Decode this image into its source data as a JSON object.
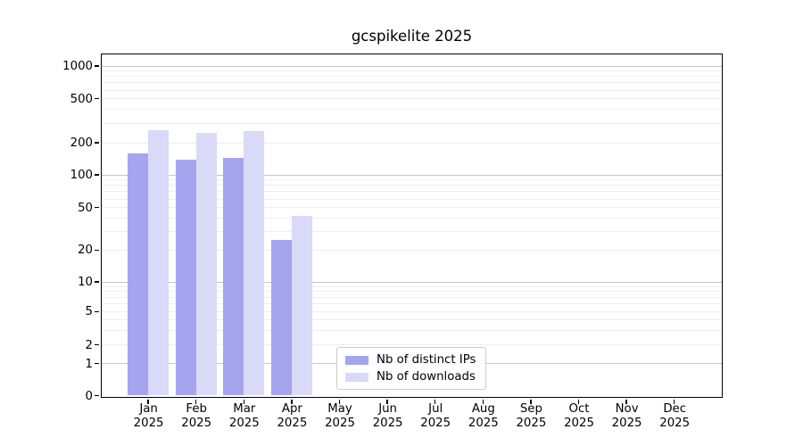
{
  "title": "gcspikelite 2025",
  "chart_data": {
    "type": "bar",
    "title": "gcspikelite 2025",
    "categories": [
      "Jan\n2025",
      "Feb\n2025",
      "Mar\n2025",
      "Apr\n2025",
      "May\n2025",
      "Jun\n2025",
      "Jul\n2025",
      "Aug\n2025",
      "Sep\n2025",
      "Oct\n2025",
      "Nov\n2025",
      "Dec\n2025"
    ],
    "series": [
      {
        "name": "Nb of distinct IPs",
        "color": "#a5a5ef",
        "values": [
          160,
          140,
          145,
          25,
          null,
          null,
          null,
          null,
          null,
          null,
          null,
          null
        ]
      },
      {
        "name": "Nb of downloads",
        "color": "#d9d9f8",
        "values": [
          260,
          245,
          255,
          42,
          null,
          null,
          null,
          null,
          null,
          null,
          null,
          null
        ]
      }
    ],
    "xlabel": "",
    "ylabel": "",
    "yscale": "symlog",
    "yticks": [
      0,
      1,
      2,
      5,
      10,
      20,
      50,
      100,
      200,
      500,
      1000
    ],
    "ylim": [
      0,
      1300
    ],
    "grid": true,
    "legend_position": "lower center",
    "gridline_major_color": "#c6c6c6",
    "gridline_minor_color": "#eeeeee"
  }
}
